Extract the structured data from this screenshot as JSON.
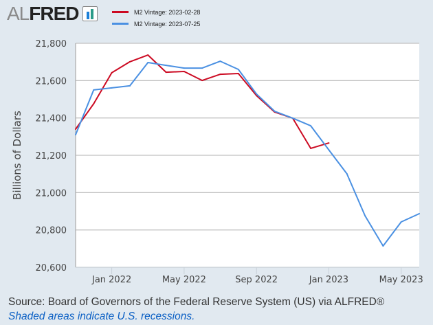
{
  "logo": {
    "al": "AL",
    "fred": "FRED",
    "icon": "bar-chart-icon"
  },
  "colors": {
    "red_series": "#cc0a22",
    "blue_series": "#4a90e2",
    "background": "#e1e9f0",
    "plot_bg": "#ffffff",
    "grid": "#c0c0c0",
    "link": "#0a5fc4"
  },
  "footer": {
    "source": "Source: Board of Governors of the Federal Reserve System (US) via ALFRED®",
    "note": "Shaded areas indicate U.S. recessions."
  },
  "chart_data": {
    "type": "line",
    "title": "",
    "xlabel": "",
    "ylabel": "Billions of Dollars",
    "ylim": [
      20600,
      21800
    ],
    "yticks": [
      20600,
      20800,
      21000,
      21200,
      21400,
      21600,
      21800
    ],
    "ytick_labels": [
      "20,600",
      "20,800",
      "21,000",
      "21,200",
      "21,400",
      "21,600",
      "21,800"
    ],
    "x": [
      "2021-11",
      "2021-12",
      "2022-01",
      "2022-02",
      "2022-03",
      "2022-04",
      "2022-05",
      "2022-06",
      "2022-07",
      "2022-08",
      "2022-09",
      "2022-10",
      "2022-11",
      "2022-12",
      "2023-01",
      "2023-02",
      "2023-03",
      "2023-04",
      "2023-05",
      "2023-06"
    ],
    "xticks": [
      {
        "label": "Jan 2022",
        "index": 2
      },
      {
        "label": "May 2022",
        "index": 6
      },
      {
        "label": "Sep 2022",
        "index": 10
      },
      {
        "label": "Jan 2023",
        "index": 14
      },
      {
        "label": "May 2023",
        "index": 18
      }
    ],
    "grid": true,
    "legend_position": "top",
    "series": [
      {
        "name": "M2 Vintage: 2023-02-28",
        "color": "#cc0a22",
        "values": [
          21340,
          21476,
          21642,
          21701,
          21737,
          21645,
          21649,
          21601,
          21634,
          21638,
          21520,
          21432,
          21399,
          21237,
          21266
        ]
      },
      {
        "name": "M2 Vintage: 2023-07-25",
        "color": "#4a90e2",
        "values": [
          21310,
          21550,
          21561,
          21572,
          21697,
          21682,
          21667,
          21667,
          21704,
          21660,
          21528,
          21436,
          21399,
          21358,
          21229,
          21101,
          20876,
          20714,
          20843,
          20887
        ]
      }
    ]
  }
}
